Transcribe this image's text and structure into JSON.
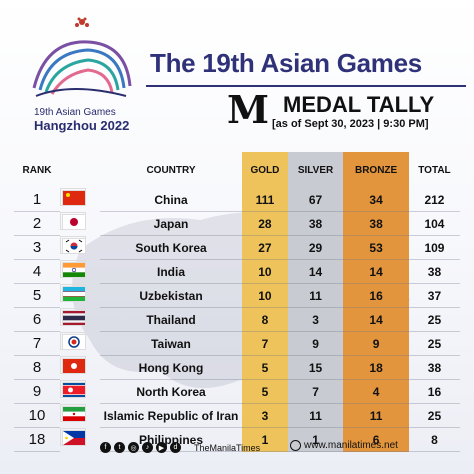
{
  "header": {
    "logo_line1": "19th Asian Games",
    "logo_line2": "Hangzhou 2022",
    "title": "The 19th Asian Games",
    "masthead_mark": "M",
    "tally_title": "MEDAL TALLY",
    "as_of": "[as of Sept 30, 2023 | 9:30 PM]"
  },
  "table": {
    "headers": {
      "rank": "RANK",
      "country": "COUNTRY",
      "gold": "GOLD",
      "silver": "SILVER",
      "bronze": "BRONZE",
      "total": "TOTAL"
    },
    "rows": [
      {
        "rank": "1",
        "country": "China",
        "gold": "111",
        "silver": "67",
        "bronze": "34",
        "total": "212",
        "flag": "china"
      },
      {
        "rank": "2",
        "country": "Japan",
        "gold": "28",
        "silver": "38",
        "bronze": "38",
        "total": "104",
        "flag": "japan"
      },
      {
        "rank": "3",
        "country": "South Korea",
        "gold": "27",
        "silver": "29",
        "bronze": "53",
        "total": "109",
        "flag": "south-korea"
      },
      {
        "rank": "4",
        "country": "India",
        "gold": "10",
        "silver": "14",
        "bronze": "14",
        "total": "38",
        "flag": "india"
      },
      {
        "rank": "5",
        "country": "Uzbekistan",
        "gold": "10",
        "silver": "11",
        "bronze": "16",
        "total": "37",
        "flag": "uzbekistan"
      },
      {
        "rank": "6",
        "country": "Thailand",
        "gold": "8",
        "silver": "3",
        "bronze": "14",
        "total": "25",
        "flag": "thailand"
      },
      {
        "rank": "7",
        "country": "Taiwan",
        "gold": "7",
        "silver": "9",
        "bronze": "9",
        "total": "25",
        "flag": "taiwan"
      },
      {
        "rank": "8",
        "country": "Hong Kong",
        "gold": "5",
        "silver": "15",
        "bronze": "18",
        "total": "38",
        "flag": "hong-kong"
      },
      {
        "rank": "9",
        "country": "North Korea",
        "gold": "5",
        "silver": "7",
        "bronze": "4",
        "total": "16",
        "flag": "north-korea"
      },
      {
        "rank": "10",
        "country": "Islamic Republic of Iran",
        "gold": "3",
        "silver": "11",
        "bronze": "11",
        "total": "25",
        "flag": "iran"
      },
      {
        "rank": "18",
        "country": "Philippines",
        "gold": "1",
        "silver": "1",
        "bronze": "6",
        "total": "8",
        "flag": "philippines"
      }
    ]
  },
  "footer": {
    "social_icons": [
      "facebook-icon",
      "twitter-icon",
      "instagram-icon",
      "tiktok-icon",
      "youtube-icon",
      "dailymotion-icon"
    ],
    "handle": "TheManilaTimes",
    "website": "www.manilatimes.net"
  },
  "colors": {
    "gold": "#eec35b",
    "silver": "#c9cbd2",
    "bronze": "#e2953c",
    "title": "#2f3279"
  }
}
